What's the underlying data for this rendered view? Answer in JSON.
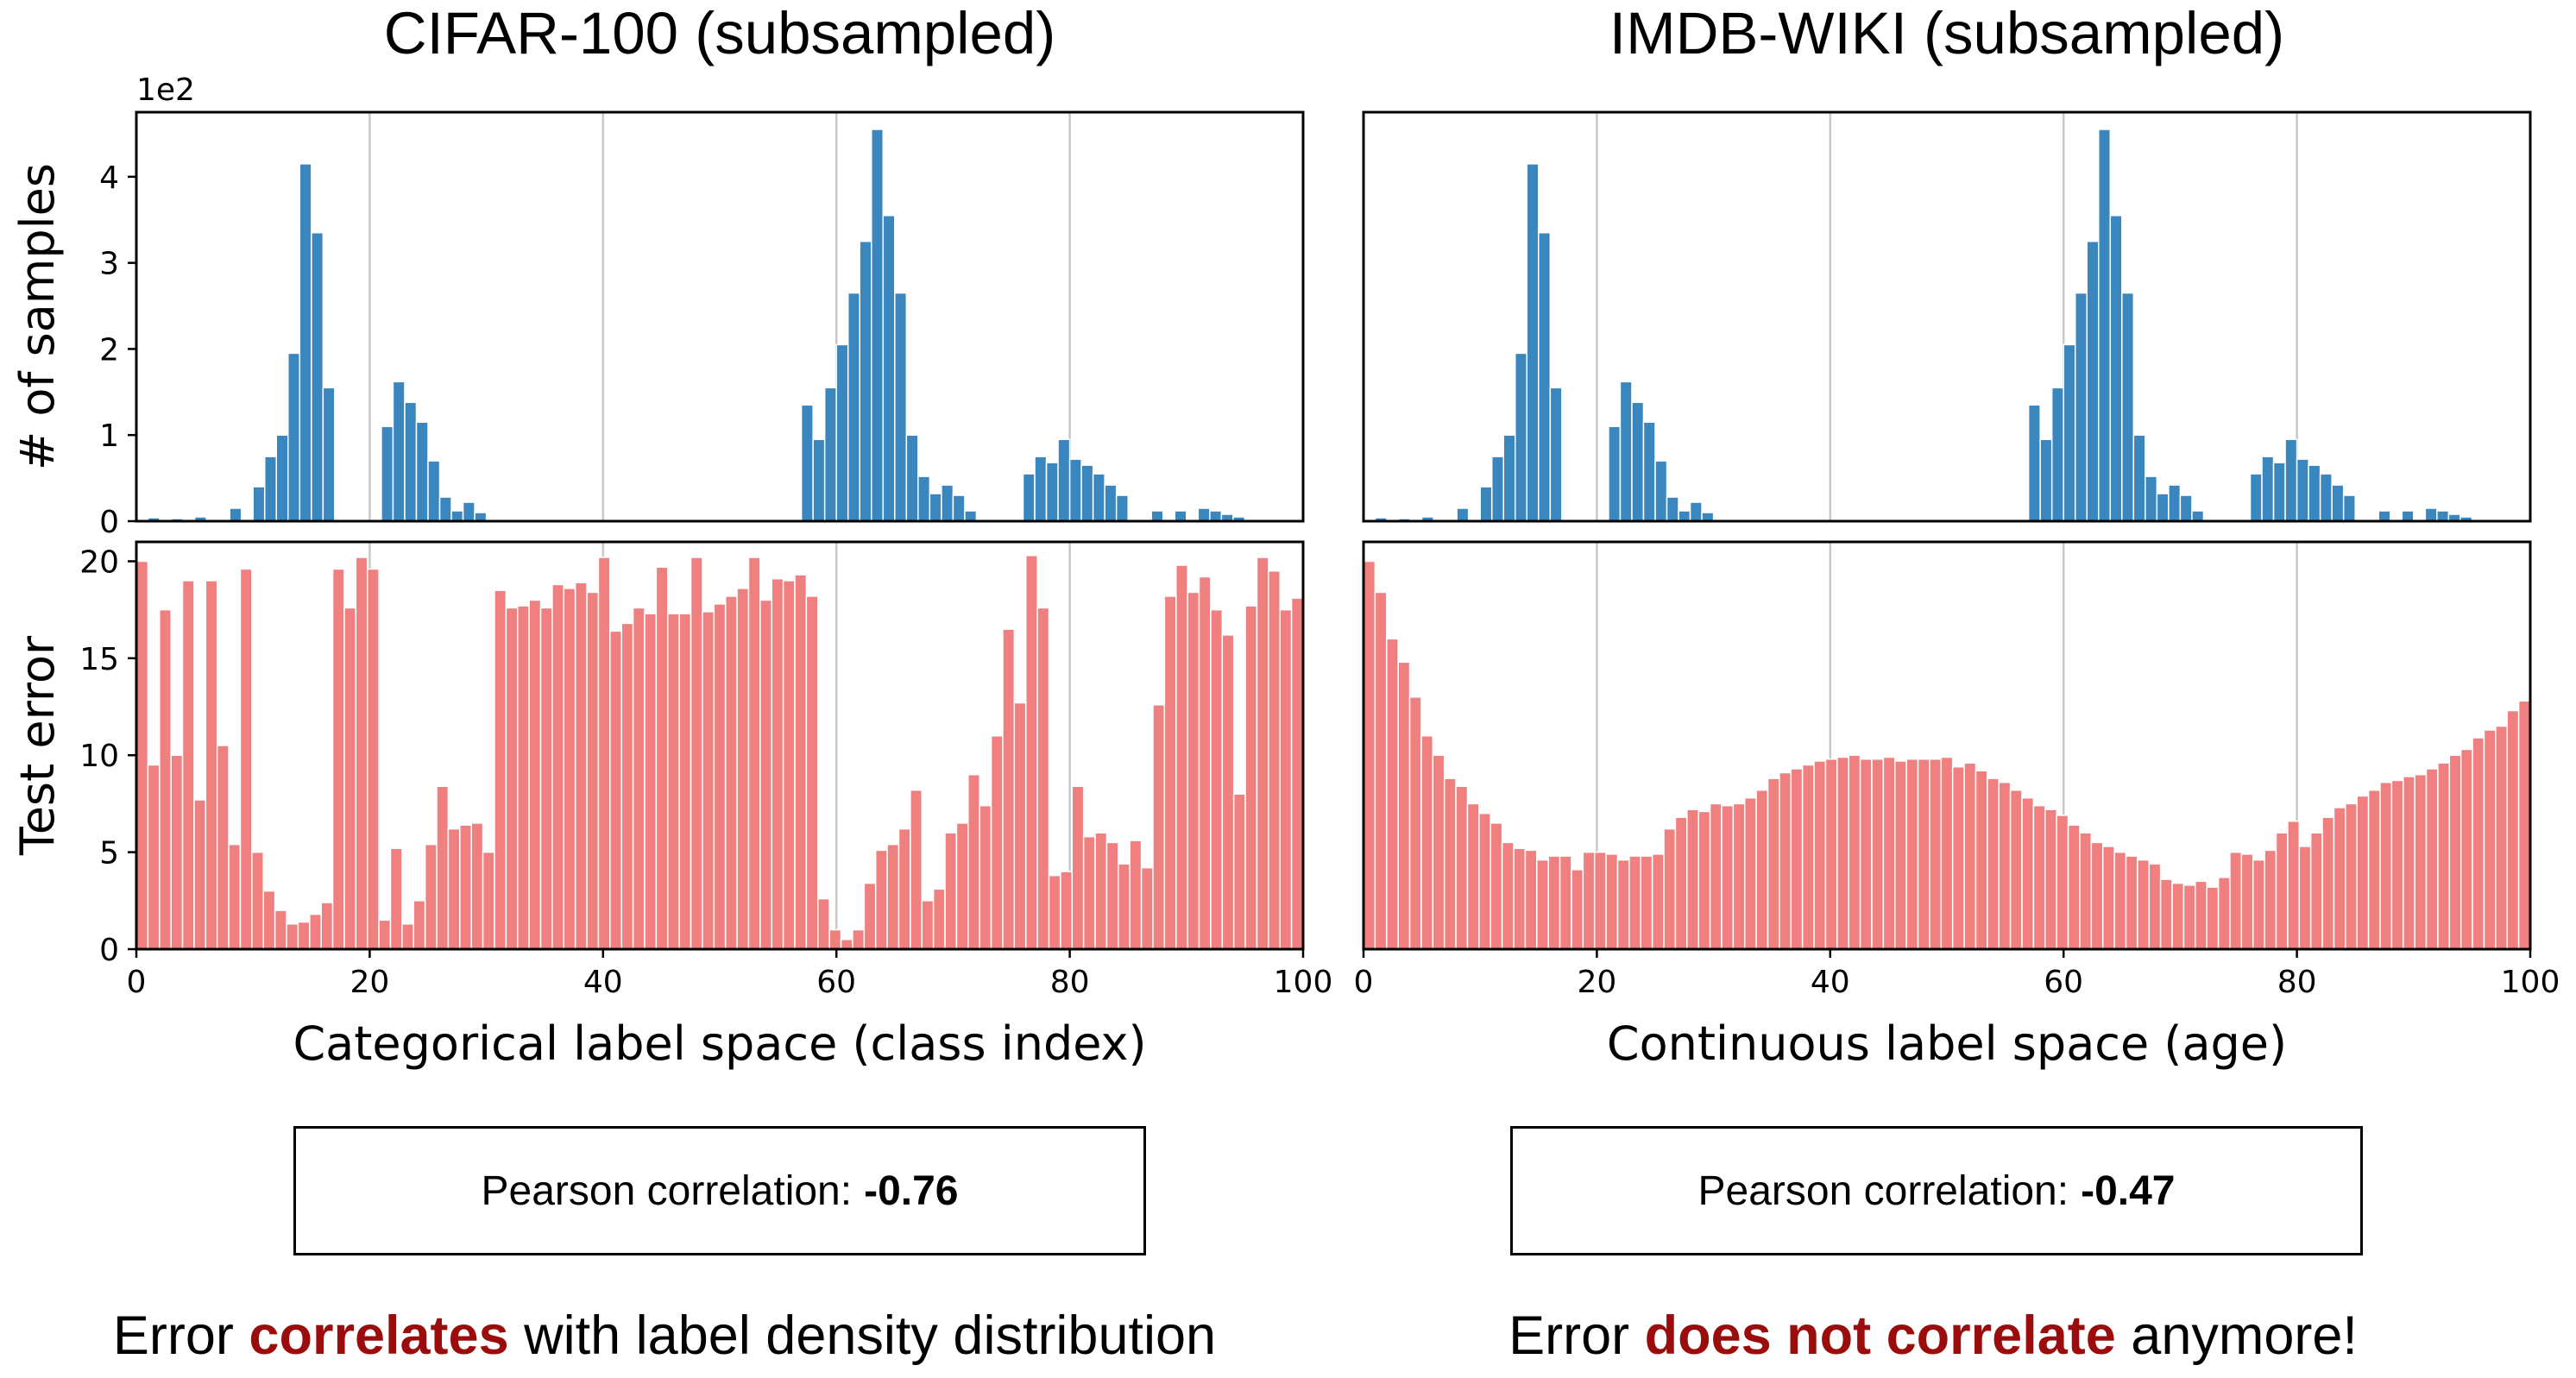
{
  "chart_data": [
    {
      "type": "bar",
      "title": "CIFAR-100 (subsampled)",
      "xlabel": "Categorical label space (class index)",
      "xlim": [
        0,
        100
      ],
      "xticks": [
        "0",
        "20",
        "40",
        "60",
        "80",
        "100"
      ],
      "grid": "vertical gridlines at x = 20, 40, 60, 80",
      "panels": [
        {
          "ylabel": "# of samples",
          "multiplier_label": "1e2",
          "ylim": [
            0,
            4.75
          ],
          "yticks": [
            "0",
            "1",
            "2",
            "3",
            "4"
          ],
          "color": "#3a87c0",
          "values": [
            0,
            0.04,
            0,
            0.03,
            0,
            0.05,
            0,
            0,
            0.15,
            0,
            0.4,
            0.75,
            1.0,
            1.95,
            4.15,
            3.35,
            1.55,
            0,
            0,
            0,
            0,
            1.1,
            1.62,
            1.38,
            1.15,
            0.7,
            0.28,
            0.12,
            0.22,
            0.1,
            0,
            0,
            0,
            0,
            0,
            0,
            0,
            0,
            0,
            0,
            0,
            0,
            0,
            0,
            0,
            0,
            0,
            0,
            0,
            0,
            0,
            0,
            0,
            0,
            0,
            0,
            0,
            1.35,
            0.95,
            1.55,
            2.05,
            2.65,
            3.25,
            4.55,
            3.55,
            2.65,
            1.0,
            0.52,
            0.32,
            0.42,
            0.3,
            0.12,
            0,
            0,
            0,
            0,
            0.55,
            0.75,
            0.68,
            0.95,
            0.72,
            0.65,
            0.55,
            0.42,
            0.3,
            0,
            0,
            0.12,
            0,
            0.12,
            0,
            0.15,
            0.12,
            0.08,
            0.05,
            0,
            0,
            0,
            0,
            0
          ]
        },
        {
          "ylabel": "Test error",
          "ylim": [
            0,
            21
          ],
          "yticks": [
            "0",
            "5",
            "10",
            "15",
            "20"
          ],
          "color": "#f08080",
          "values": [
            20.0,
            9.5,
            17.5,
            10.0,
            19.0,
            7.7,
            19.0,
            10.5,
            5.4,
            19.6,
            5.0,
            3.0,
            2.0,
            1.3,
            1.4,
            1.8,
            2.4,
            19.6,
            17.6,
            20.2,
            19.6,
            1.5,
            5.2,
            1.3,
            2.5,
            5.4,
            8.4,
            6.2,
            6.4,
            6.5,
            5.0,
            18.5,
            17.6,
            17.7,
            18.0,
            17.6,
            18.8,
            18.6,
            18.9,
            18.4,
            20.2,
            16.4,
            16.8,
            17.6,
            17.3,
            19.7,
            17.3,
            17.3,
            20.2,
            17.4,
            17.8,
            18.2,
            18.6,
            20.2,
            18.0,
            19.1,
            19.0,
            19.3,
            18.2,
            2.6,
            1.0,
            0.5,
            1.0,
            3.4,
            5.1,
            5.4,
            6.2,
            8.2,
            2.5,
            3.1,
            6.0,
            6.5,
            9.0,
            7.4,
            11.0,
            16.5,
            12.7,
            20.3,
            17.6,
            3.8,
            4.0,
            8.4,
            5.8,
            6.0,
            5.5,
            4.4,
            5.6,
            4.2,
            12.6,
            18.2,
            19.8,
            18.4,
            19.2,
            17.5,
            16.2,
            8.0,
            17.7,
            20.2,
            19.5,
            17.5,
            18.1
          ]
        }
      ]
    },
    {
      "type": "bar",
      "title": "IMDB-WIKI (subsampled)",
      "xlabel": "Continuous label space (age)",
      "xlim": [
        0,
        100
      ],
      "xticks": [
        "0",
        "20",
        "40",
        "60",
        "80",
        "100"
      ],
      "grid": "vertical gridlines at x = 20, 40, 60, 80",
      "panels": [
        {
          "ylabel": "",
          "ylim": [
            0,
            4.75
          ],
          "color": "#3a87c0",
          "values": [
            0,
            0.04,
            0,
            0.03,
            0,
            0.05,
            0,
            0,
            0.15,
            0,
            0.4,
            0.75,
            1.0,
            1.95,
            4.15,
            3.35,
            1.55,
            0,
            0,
            0,
            0,
            1.1,
            1.62,
            1.38,
            1.15,
            0.7,
            0.28,
            0.12,
            0.22,
            0.1,
            0,
            0,
            0,
            0,
            0,
            0,
            0,
            0,
            0,
            0,
            0,
            0,
            0,
            0,
            0,
            0,
            0,
            0,
            0,
            0,
            0,
            0,
            0,
            0,
            0,
            0,
            0,
            1.35,
            0.95,
            1.55,
            2.05,
            2.65,
            3.25,
            4.55,
            3.55,
            2.65,
            1.0,
            0.52,
            0.32,
            0.42,
            0.3,
            0.12,
            0,
            0,
            0,
            0,
            0.55,
            0.75,
            0.68,
            0.95,
            0.72,
            0.65,
            0.55,
            0.42,
            0.3,
            0,
            0,
            0.12,
            0,
            0.12,
            0,
            0.15,
            0.12,
            0.08,
            0.05,
            0,
            0,
            0,
            0,
            0
          ]
        },
        {
          "ylabel": "",
          "ylim": [
            0,
            21
          ],
          "color": "#f08080",
          "values": [
            20.0,
            18.4,
            16.0,
            14.8,
            13.0,
            11.0,
            10.0,
            8.8,
            8.4,
            7.5,
            7.0,
            6.5,
            5.5,
            5.2,
            5.1,
            4.6,
            4.8,
            4.8,
            4.1,
            5.0,
            5.0,
            4.9,
            4.6,
            4.8,
            4.8,
            4.9,
            6.2,
            6.8,
            7.2,
            7.1,
            7.5,
            7.4,
            7.5,
            7.8,
            8.2,
            8.8,
            9.1,
            9.3,
            9.5,
            9.7,
            9.8,
            9.9,
            10.0,
            9.8,
            9.8,
            9.9,
            9.7,
            9.8,
            9.8,
            9.8,
            9.9,
            9.4,
            9.6,
            9.2,
            8.8,
            8.6,
            8.2,
            7.8,
            7.4,
            7.2,
            6.9,
            6.4,
            6.0,
            5.5,
            5.3,
            5.0,
            4.8,
            4.6,
            4.4,
            3.6,
            3.4,
            3.3,
            3.5,
            3.2,
            3.7,
            5.0,
            4.9,
            4.6,
            5.1,
            6.0,
            6.6,
            5.3,
            6.0,
            6.8,
            7.3,
            7.5,
            7.9,
            8.2,
            8.6,
            8.7,
            8.9,
            9.0,
            9.3,
            9.6,
            10.0,
            10.3,
            10.9,
            11.3,
            11.5,
            12.3,
            12.8
          ]
        }
      ]
    }
  ],
  "correlation": {
    "left": {
      "label": "Pearson correlation:",
      "value": "-0.76"
    },
    "right": {
      "label": "Pearson correlation:",
      "value": "-0.47"
    }
  },
  "captions": {
    "left": {
      "pre": "Error",
      "highlight": "correlates",
      "post": "with label density distribution"
    },
    "right": {
      "pre": "Error",
      "highlight": "does not correlate",
      "post": "anymore!"
    }
  }
}
